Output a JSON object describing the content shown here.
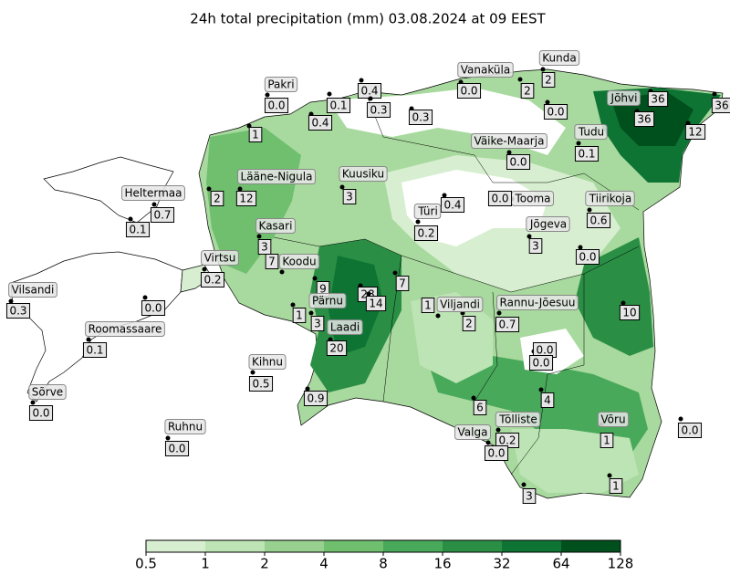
{
  "title": "24h total precipitation (mm) 03.08.2024 at 09 EEST",
  "stations": [
    {
      "name": "Pakri",
      "value": "0.0"
    },
    {
      "value": "0.1"
    },
    {
      "value": "0.4"
    },
    {
      "value": "0.3"
    },
    {
      "value": "0.4"
    },
    {
      "value": "0.3"
    },
    {
      "name": "Vanaküla",
      "value": "0.0"
    },
    {
      "name": "Kunda",
      "value": "2"
    },
    {
      "value": "2"
    },
    {
      "value": "0.0"
    },
    {
      "name": "Jõhvi",
      "value": "36"
    },
    {
      "value": "36"
    },
    {
      "value": "36"
    },
    {
      "value": "12"
    },
    {
      "value": "1"
    },
    {
      "name": "Tudu",
      "value": "0.1"
    },
    {
      "name": "Väike-Maarja",
      "value": "0.0"
    },
    {
      "name": "Lääne-Nigula",
      "value": "12"
    },
    {
      "value": "2"
    },
    {
      "name": "Kuusiku",
      "value": "3"
    },
    {
      "name": "Heltermaa",
      "value": "0.7"
    },
    {
      "value": "0.1"
    },
    {
      "value": "0.4"
    },
    {
      "name": "Türi",
      "value": "0.2"
    },
    {
      "name": "Tooma",
      "value": "0.0"
    },
    {
      "name": "Tiirikoja",
      "value": "0.6"
    },
    {
      "name": "Jõgeva",
      "value": "3"
    },
    {
      "value": "0.0"
    },
    {
      "name": "Kasari",
      "value": "3"
    },
    {
      "name": "Virtsu",
      "value": "0.2"
    },
    {
      "name": "Koodu",
      "value": "7"
    },
    {
      "value": "9"
    },
    {
      "value": "28"
    },
    {
      "value": "14"
    },
    {
      "value": "7"
    },
    {
      "name": "Vilsandi",
      "value": "0.3"
    },
    {
      "value": "0.0"
    },
    {
      "value": "1"
    },
    {
      "name": "Pärnu",
      "value": "3"
    },
    {
      "value": "1"
    },
    {
      "name": "Viljandi",
      "value": "2"
    },
    {
      "name": "Rannu-Jõesuu",
      "value": "0.7"
    },
    {
      "value": "10"
    },
    {
      "name": "Laadi",
      "value": "20"
    },
    {
      "name": "Roomassaare",
      "value": "0.1"
    },
    {
      "value": "0.0"
    },
    {
      "value": "0.0"
    },
    {
      "name": "Kihnu",
      "value": "0.5"
    },
    {
      "value": "4"
    },
    {
      "name": "Sõrve",
      "value": "0.0"
    },
    {
      "value": "0.9"
    },
    {
      "value": "6"
    },
    {
      "name": "Tõlliste",
      "value": "0.2"
    },
    {
      "name": "Valga",
      "value": "0.0"
    },
    {
      "name": "Võru",
      "value": "1"
    },
    {
      "value": "0.0"
    },
    {
      "name": "Ruhnu",
      "value": "0.0"
    },
    {
      "value": "3"
    },
    {
      "value": "1"
    }
  ],
  "colorbar": {
    "levels": [
      0.5,
      1,
      2,
      4,
      8,
      16,
      32,
      64,
      128
    ],
    "colors": [
      "#d7efd0",
      "#bde4b4",
      "#98d18f",
      "#6fbf6e",
      "#48a95a",
      "#2a8f45",
      "#0d7433",
      "#00501e"
    ],
    "log_scale": true
  }
}
